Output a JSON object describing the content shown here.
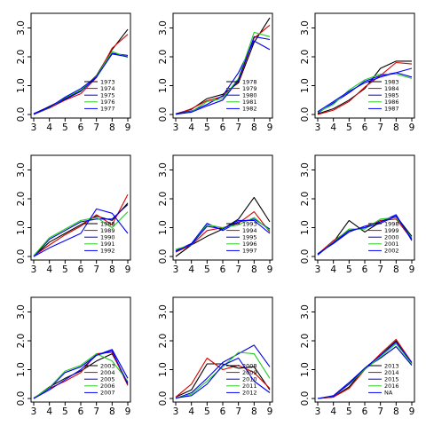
{
  "chart_data": {
    "type": "line",
    "grid": false,
    "layout": "3x3 panels",
    "x_ticks": [
      "3",
      "4",
      "5",
      "6",
      "7",
      "8",
      "9"
    ],
    "y_ticks": [
      "0.0",
      "1.0",
      "2.0",
      "3.0"
    ],
    "xlim": [
      3,
      9
    ],
    "ylim": [
      0,
      3.5
    ],
    "palette": [
      "#000000",
      "#dd0000",
      "#0000dd",
      "#22cc22",
      "#0000ff"
    ],
    "panels": [
      {
        "legend_position": "right",
        "x": [
          3,
          4,
          5,
          6,
          7,
          8,
          9
        ],
        "series": [
          {
            "name": "1973",
            "color": "#000000",
            "values": [
              0.02,
              0.28,
              0.55,
              0.82,
              1.35,
              2.25,
              2.95
            ]
          },
          {
            "name": "1974",
            "color": "#dd0000",
            "values": [
              0.0,
              0.22,
              0.5,
              0.72,
              1.28,
              2.3,
              2.78
            ]
          },
          {
            "name": "1975",
            "color": "#0000dd",
            "values": [
              0.03,
              0.26,
              0.52,
              0.8,
              1.3,
              2.12,
              2.05
            ]
          },
          {
            "name": "1976",
            "color": "#22cc22",
            "values": [
              0.0,
              0.24,
              0.58,
              0.85,
              1.32,
              2.18,
              1.98
            ]
          },
          {
            "name": "1977",
            "color": "#0000ff",
            "values": [
              0.01,
              0.25,
              0.6,
              0.9,
              1.3,
              2.1,
              2.0
            ]
          }
        ]
      },
      {
        "legend_position": "right",
        "x": [
          3,
          4,
          5,
          6,
          7,
          8,
          9
        ],
        "series": [
          {
            "name": "1978",
            "color": "#000000",
            "values": [
              0.02,
              0.18,
              0.55,
              0.7,
              1.1,
              2.5,
              3.35
            ]
          },
          {
            "name": "1979",
            "color": "#dd0000",
            "values": [
              0.0,
              0.2,
              0.48,
              0.62,
              1.15,
              2.65,
              3.1
            ]
          },
          {
            "name": "1980",
            "color": "#0000dd",
            "values": [
              0.02,
              0.12,
              0.35,
              0.65,
              1.45,
              2.55,
              2.25
            ]
          },
          {
            "name": "1981",
            "color": "#22cc22",
            "values": [
              0.0,
              0.1,
              0.45,
              0.55,
              1.25,
              2.85,
              2.7
            ]
          },
          {
            "name": "1982",
            "color": "#0000ff",
            "values": [
              0.01,
              0.08,
              0.3,
              0.5,
              1.2,
              2.7,
              2.6
            ]
          }
        ]
      },
      {
        "legend_position": "right",
        "x": [
          3,
          4,
          5,
          6,
          7,
          8,
          9
        ],
        "series": [
          {
            "name": "1983",
            "color": "#000000",
            "values": [
              0.02,
              0.2,
              0.5,
              0.9,
              1.6,
              1.85,
              1.85
            ]
          },
          {
            "name": "1984",
            "color": "#dd0000",
            "values": [
              0.0,
              0.15,
              0.45,
              0.95,
              1.35,
              1.8,
              1.75
            ]
          },
          {
            "name": "1985",
            "color": "#0000dd",
            "values": [
              0.05,
              0.4,
              0.75,
              1.15,
              1.35,
              1.45,
              1.3
            ]
          },
          {
            "name": "1986",
            "color": "#22cc22",
            "values": [
              0.08,
              0.35,
              0.85,
              1.2,
              1.4,
              1.4,
              1.25
            ]
          },
          {
            "name": "1987",
            "color": "#0000ff",
            "values": [
              0.1,
              0.45,
              0.8,
              1.1,
              1.3,
              1.45,
              1.6
            ]
          }
        ]
      },
      {
        "legend_position": "right",
        "x": [
          3,
          4,
          5,
          6,
          7,
          8,
          9
        ],
        "series": [
          {
            "name": "1988",
            "color": "#000000",
            "values": [
              0.0,
              0.5,
              0.8,
              1.1,
              1.4,
              1.25,
              1.85
            ]
          },
          {
            "name": "1989",
            "color": "#dd0000",
            "values": [
              0.02,
              0.4,
              0.75,
              1.05,
              1.45,
              1.1,
              2.15
            ]
          },
          {
            "name": "1990",
            "color": "#0000dd",
            "values": [
              0.0,
              0.6,
              0.9,
              1.2,
              1.3,
              1.3,
              1.8
            ]
          },
          {
            "name": "1991",
            "color": "#22cc22",
            "values": [
              0.03,
              0.65,
              0.95,
              1.25,
              1.35,
              1.0,
              1.55
            ]
          },
          {
            "name": "1992",
            "color": "#0000ff",
            "values": [
              0.0,
              0.3,
              0.55,
              0.8,
              1.65,
              1.5,
              0.8
            ]
          }
        ]
      },
      {
        "legend_position": "right",
        "x": [
          3,
          4,
          5,
          6,
          7,
          8,
          9
        ],
        "series": [
          {
            "name": "1993",
            "color": "#000000",
            "values": [
              0.0,
              0.4,
              0.7,
              0.95,
              1.3,
              2.05,
              1.2
            ]
          },
          {
            "name": "1994",
            "color": "#dd0000",
            "values": [
              0.15,
              0.4,
              0.9,
              1.0,
              1.15,
              1.55,
              0.85
            ]
          },
          {
            "name": "1995",
            "color": "#0000dd",
            "values": [
              0.2,
              0.45,
              1.15,
              0.9,
              1.2,
              1.3,
              0.95
            ]
          },
          {
            "name": "1996",
            "color": "#22cc22",
            "values": [
              0.25,
              0.4,
              1.1,
              1.0,
              1.1,
              1.35,
              0.9
            ]
          },
          {
            "name": "1997",
            "color": "#0000ff",
            "values": [
              0.18,
              0.42,
              1.05,
              0.95,
              1.25,
              1.25,
              0.8
            ]
          }
        ]
      },
      {
        "legend_position": "right",
        "x": [
          3,
          4,
          5,
          6,
          7,
          8,
          9
        ],
        "series": [
          {
            "name": "1998",
            "color": "#000000",
            "values": [
              0.05,
              0.5,
              1.25,
              0.85,
              1.2,
              1.4,
              0.7
            ]
          },
          {
            "name": "1999",
            "color": "#dd0000",
            "values": [
              0.08,
              0.55,
              0.9,
              1.0,
              1.25,
              1.3,
              0.6
            ]
          },
          {
            "name": "2000",
            "color": "#0000dd",
            "values": [
              0.1,
              0.45,
              0.85,
              1.05,
              1.2,
              1.45,
              0.55
            ]
          },
          {
            "name": "2001",
            "color": "#22cc22",
            "values": [
              0.06,
              0.5,
              0.95,
              0.95,
              1.3,
              1.35,
              0.65
            ]
          },
          {
            "name": "2002",
            "color": "#0000ff",
            "values": [
              0.07,
              0.48,
              0.9,
              1.0,
              1.15,
              1.4,
              0.6
            ]
          }
        ]
      },
      {
        "legend_position": "right",
        "x": [
          3,
          4,
          5,
          6,
          7,
          8,
          9
        ],
        "series": [
          {
            "name": "2003",
            "color": "#000000",
            "values": [
              0.0,
              0.4,
              0.7,
              0.95,
              1.3,
              1.55,
              0.55
            ]
          },
          {
            "name": "2004",
            "color": "#dd0000",
            "values": [
              0.02,
              0.35,
              0.6,
              0.9,
              1.55,
              1.6,
              0.45
            ]
          },
          {
            "name": "2005",
            "color": "#0000dd",
            "values": [
              0.0,
              0.35,
              0.9,
              1.1,
              1.5,
              1.7,
              0.7
            ]
          },
          {
            "name": "2006",
            "color": "#22cc22",
            "values": [
              0.01,
              0.38,
              0.95,
              1.15,
              1.55,
              1.3,
              0.6
            ]
          },
          {
            "name": "2007",
            "color": "#0000ff",
            "values": [
              0.0,
              0.3,
              0.65,
              1.0,
              1.5,
              1.65,
              0.5
            ]
          }
        ]
      },
      {
        "legend_position": "right",
        "x": [
          3,
          4,
          5,
          6,
          7,
          8,
          9
        ],
        "series": [
          {
            "name": "2008",
            "color": "#000000",
            "values": [
              0.05,
              0.3,
              1.2,
              1.2,
              1.05,
              1.1,
              0.3
            ]
          },
          {
            "name": "2009",
            "color": "#dd0000",
            "values": [
              0.05,
              0.5,
              1.4,
              1.0,
              1.15,
              0.9,
              0.35
            ]
          },
          {
            "name": "2010",
            "color": "#0000dd",
            "values": [
              0.0,
              0.2,
              0.7,
              1.25,
              1.55,
              1.85,
              1.1
            ]
          },
          {
            "name": "2011",
            "color": "#22cc22",
            "values": [
              0.0,
              0.15,
              0.6,
              1.1,
              1.6,
              1.55,
              0.7
            ]
          },
          {
            "name": "2012",
            "color": "#0000ff",
            "values": [
              0.02,
              0.1,
              0.5,
              1.15,
              1.4,
              0.6,
              0.2
            ]
          }
        ]
      },
      {
        "legend_position": "right",
        "x": [
          3,
          4,
          5,
          6,
          7,
          8,
          9
        ],
        "series": [
          {
            "name": "2013",
            "color": "#000000",
            "values": [
              0.0,
              0.05,
              0.4,
              1.05,
              1.5,
              2.0,
              1.2
            ]
          },
          {
            "name": "2014",
            "color": "#dd0000",
            "values": [
              0.0,
              0.05,
              0.35,
              1.0,
              1.55,
              2.05,
              1.25
            ]
          },
          {
            "name": "2015",
            "color": "#0000dd",
            "values": [
              0.0,
              0.1,
              0.55,
              1.05,
              1.4,
              1.8,
              1.15
            ]
          },
          {
            "name": "2016",
            "color": "#22cc22",
            "values": [
              0.0,
              0.08,
              0.5,
              1.0,
              1.45,
              1.9,
              1.2
            ]
          },
          {
            "name": "NA",
            "color": "#0000ff",
            "values": [
              0.0,
              0.08,
              0.5,
              1.05,
              1.5,
              1.95,
              1.25
            ]
          }
        ]
      }
    ]
  }
}
